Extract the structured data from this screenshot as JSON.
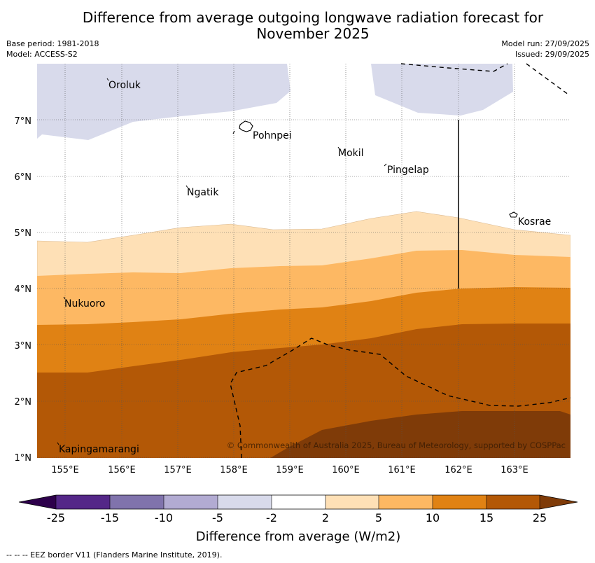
{
  "title": {
    "line1": "Difference from average outgoing longwave radiation forecast for",
    "line2": "November 2025"
  },
  "meta": {
    "base_period": "Base period: 1981-2018",
    "model": "Model: ACCESS-S2",
    "model_run": "Model run: 27/09/2025",
    "issued": "Issued: 29/09/2025"
  },
  "map": {
    "lon_labels": [
      "155°E",
      "156°E",
      "157°E",
      "158°E",
      "159°E",
      "160°E",
      "161°E",
      "162°E",
      "163°E"
    ],
    "lat_labels": [
      "7°N",
      "6°N",
      "5°N",
      "4°N",
      "3°N",
      "2°N",
      "1°N"
    ],
    "places": {
      "oroluk": "Oroluk",
      "pohnpei": "Pohnpei",
      "mokil": "Mokil",
      "pingelap": "Pingelap",
      "ngatik": "Ngatik",
      "kosrae": "Kosrae",
      "nukuoro": "Nukuoro",
      "kapingamarangi": "Kapingamarangi"
    },
    "copyright": "© Commonwealth of Australia 2025, Bureau of Meteorology, supported by COSPPac"
  },
  "colorbar": {
    "tick_labels": [
      "-25",
      "-15",
      "-10",
      "-5",
      "-2",
      "2",
      "5",
      "10",
      "15",
      "25"
    ],
    "colors": [
      "#2d004b",
      "#542788",
      "#8073ac",
      "#b2abd2",
      "#d8daeb",
      "#ffffff",
      "#fee0b6",
      "#fdb863",
      "#e08214",
      "#b35806",
      "#7f3b08"
    ],
    "label": "Difference from average (W/m2)"
  },
  "footer": "--  --  -- EEZ border V11 (Flanders Marine Institute, 2019)."
}
